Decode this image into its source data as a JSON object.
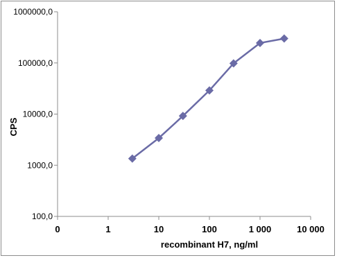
{
  "chart_data": {
    "type": "line",
    "title": "",
    "xlabel": "recombinant H7, ng/ml",
    "ylabel": "CPS",
    "x_scale": "log",
    "y_scale": "log",
    "x_ticks": [
      {
        "label": "0",
        "value": 0.1
      },
      {
        "label": "1",
        "value": 1
      },
      {
        "label": "10",
        "value": 10
      },
      {
        "label": "100",
        "value": 100
      },
      {
        "label": "1 000",
        "value": 1000
      },
      {
        "label": "10 000",
        "value": 10000
      }
    ],
    "y_ticks": [
      {
        "label": "100,0",
        "value": 100
      },
      {
        "label": "1000,0",
        "value": 1000
      },
      {
        "label": "10000,0",
        "value": 10000
      },
      {
        "label": "100000,0",
        "value": 100000
      },
      {
        "label": "1000000,0",
        "value": 1000000
      }
    ],
    "xlim": [
      0.1,
      10000
    ],
    "ylim": [
      100,
      1000000
    ],
    "grid": false,
    "legend": "none",
    "series": [
      {
        "color": "#6a6ba6",
        "marker": "diamond",
        "points": [
          {
            "x": 3,
            "y": 1350
          },
          {
            "x": 10,
            "y": 3400
          },
          {
            "x": 30,
            "y": 9200
          },
          {
            "x": 100,
            "y": 29000
          },
          {
            "x": 300,
            "y": 98000
          },
          {
            "x": 1000,
            "y": 245000
          },
          {
            "x": 3000,
            "y": 300000
          }
        ]
      }
    ]
  }
}
